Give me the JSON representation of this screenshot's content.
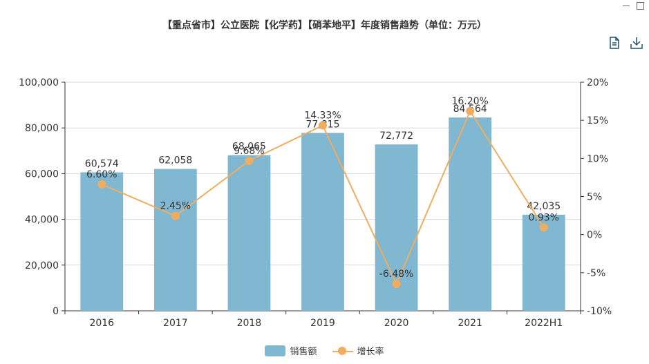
{
  "window": {
    "minimize_glyph": "—",
    "maximize_glyph": "☐"
  },
  "toolbox": {
    "data_view_icon": "document-icon",
    "save_icon": "download-icon",
    "icon_color": "#1f4e6e"
  },
  "chart_data": {
    "type": "bar+line",
    "title": "【重点省市】公立医院【化学药】【硝苯地平】年度销售趋势（单位：万元）",
    "categories": [
      "2016",
      "2017",
      "2018",
      "2019",
      "2020",
      "2021",
      "2022H1"
    ],
    "series": [
      {
        "name": "销售额",
        "type": "bar",
        "color": "#81b8d1",
        "values": [
          60574,
          62058,
          68065,
          77815,
          72772,
          84564,
          42035
        ],
        "labels": [
          "60,574",
          "62,058",
          "68,065",
          "77,815",
          "72,772",
          "84,564",
          "42,035"
        ]
      },
      {
        "name": "增长率",
        "type": "line",
        "color": "#f0ad5f",
        "values": [
          6.6,
          2.45,
          9.68,
          14.33,
          -6.48,
          16.2,
          0.93
        ],
        "labels": [
          "6.60%",
          "2.45%",
          "9.68%",
          "14.33%",
          "-6.48%",
          "16.20%",
          "0.93%"
        ]
      }
    ],
    "y_left": {
      "min": 0,
      "max": 100000,
      "ticks": [
        "0",
        "20,000",
        "40,000",
        "60,000",
        "80,000",
        "100,000"
      ]
    },
    "y_right": {
      "min": -10,
      "max": 20,
      "ticks": [
        "-10%",
        "-5%",
        "0%",
        "5%",
        "10%",
        "15%",
        "20%"
      ]
    },
    "grid": true,
    "legend": "bottom-center"
  }
}
